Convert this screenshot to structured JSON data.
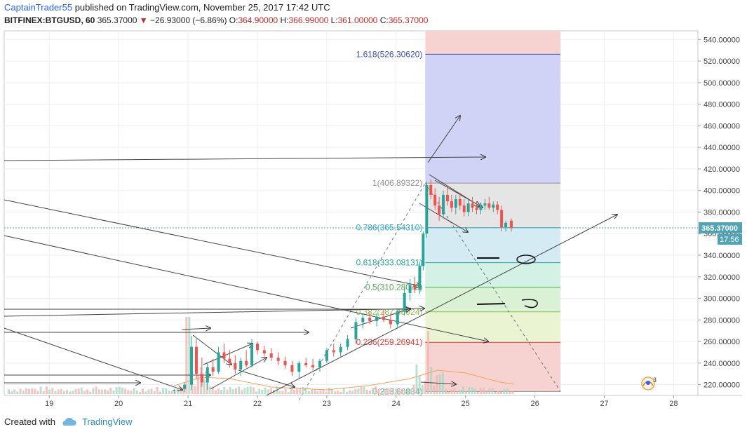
{
  "header": {
    "author": "CaptainTrader55",
    "published": " published on TradingView.com, November 25, 2017 17:42 UTC",
    "symbol": "BITFINEX:BTGUSD, 60",
    "last": "365.37000",
    "change": "−26.93000 (−6.86%)",
    "open_label": "O:",
    "open": "364.90000",
    "high_label": "H:",
    "high": "366.99000",
    "low_label": "L:",
    "low": "361.00000",
    "close_label": "C:",
    "close": "365.37000"
  },
  "footer": {
    "created_with": "Created with",
    "brand": "TradingView"
  },
  "colors": {
    "up": "#26a69a",
    "down": "#ef5350",
    "grid": "#eceff2",
    "price_tag": "#4fa3b5",
    "time_tag": "#4fa3b5"
  },
  "chart_data": {
    "type": "candlestick",
    "price_axis": {
      "ylim": [
        210,
        548
      ],
      "ticks": [
        220,
        240,
        260,
        280,
        300,
        320,
        340,
        360,
        380,
        400,
        420,
        440,
        460,
        480,
        500,
        520,
        540
      ],
      "tick_labels": [
        "220.00000",
        "240.00000",
        "260.00000",
        "280.00000",
        "300.00000",
        "320.00000",
        "340.00000",
        "360.00000",
        "380.00000",
        "400.00000",
        "420.00000",
        "440.00000",
        "460.00000",
        "480.00000",
        "500.00000",
        "520.00000",
        "540.00000"
      ]
    },
    "time_axis": {
      "xlim": [
        18.35,
        28.35
      ],
      "ticks": [
        19,
        20,
        21,
        22,
        23,
        24,
        25,
        26,
        27,
        28
      ],
      "tick_labels": [
        "19",
        "20",
        "21",
        "22",
        "23",
        "24",
        "25",
        "26",
        "27",
        "28"
      ]
    },
    "last_price": {
      "value": 365.37,
      "label": "365.37000",
      "countdown": "17:56"
    },
    "fib_retracement": {
      "levels": [
        {
          "ratio": 0,
          "price": 213.66834,
          "label": "0(213.66834)",
          "color": "#909090"
        },
        {
          "ratio": 0.236,
          "price": 259.26941,
          "label": "0.236(259.26941)",
          "color": "#e53935"
        },
        {
          "ratio": 0.382,
          "price": 287.48024,
          "label": "0.382(287.48024)",
          "color": "#8bc34a"
        },
        {
          "ratio": 0.5,
          "price": 310.28078,
          "label": "0.5(310.28078)",
          "color": "#4caf50"
        },
        {
          "ratio": 0.618,
          "price": 333.08131,
          "label": "0.618(333.08131)",
          "color": "#26a69a"
        },
        {
          "ratio": 0.786,
          "price": 365.5431,
          "label": "0.786(365.54310)",
          "color": "#2aa8c8"
        },
        {
          "ratio": 1,
          "price": 406.89322,
          "label": "1(406.89322)",
          "color": "#909090"
        },
        {
          "ratio": 1.618,
          "price": 526.3062,
          "label": "1.618(526.30620)",
          "color": "#3f51b5"
        }
      ],
      "time_range": [
        24.42,
        26.37
      ]
    },
    "candles": [
      {
        "t": 20.8,
        "o": 214,
        "h": 216,
        "l": 212,
        "c": 215
      },
      {
        "t": 20.95,
        "o": 216,
        "h": 222,
        "l": 213,
        "c": 220
      },
      {
        "t": 21.05,
        "o": 220,
        "h": 265,
        "l": 215,
        "c": 255
      },
      {
        "t": 21.12,
        "o": 255,
        "h": 262,
        "l": 225,
        "c": 230
      },
      {
        "t": 21.2,
        "o": 230,
        "h": 245,
        "l": 218,
        "c": 222
      },
      {
        "t": 21.28,
        "o": 222,
        "h": 240,
        "l": 215,
        "c": 236
      },
      {
        "t": 21.36,
        "o": 236,
        "h": 244,
        "l": 228,
        "c": 232
      },
      {
        "t": 21.44,
        "o": 232,
        "h": 255,
        "l": 230,
        "c": 250
      },
      {
        "t": 21.52,
        "o": 250,
        "h": 258,
        "l": 240,
        "c": 244
      },
      {
        "t": 21.6,
        "o": 244,
        "h": 252,
        "l": 236,
        "c": 240
      },
      {
        "t": 21.68,
        "o": 240,
        "h": 247,
        "l": 230,
        "c": 234
      },
      {
        "t": 21.76,
        "o": 234,
        "h": 245,
        "l": 228,
        "c": 242
      },
      {
        "t": 21.84,
        "o": 242,
        "h": 252,
        "l": 236,
        "c": 238
      },
      {
        "t": 21.92,
        "o": 238,
        "h": 262,
        "l": 236,
        "c": 258
      },
      {
        "t": 22.0,
        "o": 258,
        "h": 260,
        "l": 248,
        "c": 252
      },
      {
        "t": 22.1,
        "o": 252,
        "h": 256,
        "l": 246,
        "c": 249
      },
      {
        "t": 22.2,
        "o": 249,
        "h": 254,
        "l": 242,
        "c": 245
      },
      {
        "t": 22.3,
        "o": 245,
        "h": 250,
        "l": 238,
        "c": 242
      },
      {
        "t": 22.4,
        "o": 242,
        "h": 246,
        "l": 235,
        "c": 238
      },
      {
        "t": 22.5,
        "o": 238,
        "h": 242,
        "l": 228,
        "c": 232
      },
      {
        "t": 22.6,
        "o": 232,
        "h": 242,
        "l": 226,
        "c": 240
      },
      {
        "t": 22.7,
        "o": 240,
        "h": 245,
        "l": 236,
        "c": 238
      },
      {
        "t": 22.8,
        "o": 238,
        "h": 244,
        "l": 233,
        "c": 236
      },
      {
        "t": 22.9,
        "o": 236,
        "h": 244,
        "l": 232,
        "c": 242
      },
      {
        "t": 23.0,
        "o": 242,
        "h": 254,
        "l": 240,
        "c": 252
      },
      {
        "t": 23.1,
        "o": 252,
        "h": 258,
        "l": 246,
        "c": 250
      },
      {
        "t": 23.2,
        "o": 250,
        "h": 258,
        "l": 246,
        "c": 255
      },
      {
        "t": 23.3,
        "o": 255,
        "h": 266,
        "l": 252,
        "c": 262
      },
      {
        "t": 23.42,
        "o": 262,
        "h": 282,
        "l": 258,
        "c": 278
      },
      {
        "t": 23.52,
        "o": 278,
        "h": 285,
        "l": 272,
        "c": 282
      },
      {
        "t": 23.62,
        "o": 282,
        "h": 288,
        "l": 276,
        "c": 279
      },
      {
        "t": 23.72,
        "o": 279,
        "h": 286,
        "l": 274,
        "c": 283
      },
      {
        "t": 23.82,
        "o": 283,
        "h": 290,
        "l": 278,
        "c": 280
      },
      {
        "t": 23.92,
        "o": 280,
        "h": 286,
        "l": 272,
        "c": 276
      },
      {
        "t": 24.02,
        "o": 276,
        "h": 290,
        "l": 272,
        "c": 288
      },
      {
        "t": 24.12,
        "o": 288,
        "h": 310,
        "l": 284,
        "c": 305
      },
      {
        "t": 24.2,
        "o": 305,
        "h": 318,
        "l": 298,
        "c": 312
      },
      {
        "t": 24.27,
        "o": 312,
        "h": 320,
        "l": 305,
        "c": 308
      },
      {
        "t": 24.34,
        "o": 308,
        "h": 334,
        "l": 304,
        "c": 330
      },
      {
        "t": 24.39,
        "o": 330,
        "h": 362,
        "l": 326,
        "c": 360
      },
      {
        "t": 24.44,
        "o": 360,
        "h": 408,
        "l": 356,
        "c": 405
      },
      {
        "t": 24.5,
        "o": 405,
        "h": 410,
        "l": 392,
        "c": 396
      },
      {
        "t": 24.56,
        "o": 396,
        "h": 402,
        "l": 382,
        "c": 386
      },
      {
        "t": 24.62,
        "o": 386,
        "h": 394,
        "l": 372,
        "c": 378
      },
      {
        "t": 24.68,
        "o": 378,
        "h": 400,
        "l": 374,
        "c": 396
      },
      {
        "t": 24.74,
        "o": 396,
        "h": 404,
        "l": 386,
        "c": 390
      },
      {
        "t": 24.8,
        "o": 390,
        "h": 396,
        "l": 380,
        "c": 384
      },
      {
        "t": 24.86,
        "o": 384,
        "h": 396,
        "l": 378,
        "c": 392
      },
      {
        "t": 24.92,
        "o": 392,
        "h": 398,
        "l": 382,
        "c": 386
      },
      {
        "t": 24.98,
        "o": 386,
        "h": 392,
        "l": 376,
        "c": 380
      },
      {
        "t": 25.04,
        "o": 380,
        "h": 392,
        "l": 376,
        "c": 388
      },
      {
        "t": 25.1,
        "o": 388,
        "h": 394,
        "l": 380,
        "c": 384
      },
      {
        "t": 25.16,
        "o": 384,
        "h": 390,
        "l": 378,
        "c": 382
      },
      {
        "t": 25.22,
        "o": 382,
        "h": 388,
        "l": 378,
        "c": 386
      },
      {
        "t": 25.28,
        "o": 386,
        "h": 392,
        "l": 382,
        "c": 388
      },
      {
        "t": 25.34,
        "o": 388,
        "h": 394,
        "l": 382,
        "c": 384
      },
      {
        "t": 25.4,
        "o": 384,
        "h": 390,
        "l": 380,
        "c": 387
      },
      {
        "t": 25.46,
        "o": 387,
        "h": 390,
        "l": 378,
        "c": 382
      },
      {
        "t": 25.52,
        "o": 382,
        "h": 386,
        "l": 362,
        "c": 366
      },
      {
        "t": 25.58,
        "o": 366,
        "h": 372,
        "l": 362,
        "c": 370
      },
      {
        "t": 25.66,
        "o": 372,
        "h": 374,
        "l": 362,
        "c": 365
      }
    ],
    "volume_profile": "low bars along bottom; spikes near day 21 and day 24.3"
  }
}
